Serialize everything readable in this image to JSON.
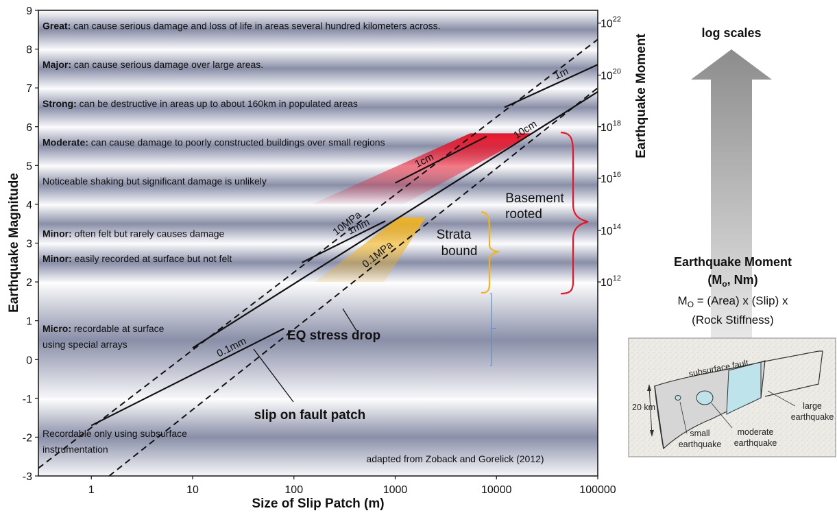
{
  "chart_data": {
    "type": "line",
    "x_scale": "log",
    "xlim": [
      0.3,
      100000
    ],
    "ylim": [
      -3,
      9
    ],
    "xlabel": "Size of Slip Patch (m)",
    "ylabel": "Earthquake Magnitude",
    "y2label": "Earthquake Moment",
    "x_ticks": [
      "1",
      "10",
      "100",
      "1000",
      "10000",
      "100000"
    ],
    "y_ticks": [
      "-3",
      "-2",
      "-1",
      "0",
      "1",
      "2",
      "3",
      "4",
      "5",
      "6",
      "7",
      "8",
      "9"
    ],
    "y2_ticks": [
      {
        "magnitude": 2,
        "base": "10",
        "exp": "12"
      },
      {
        "magnitude": 3.33,
        "base": "10",
        "exp": "14"
      },
      {
        "magnitude": 4.67,
        "base": "10",
        "exp": "16"
      },
      {
        "magnitude": 6,
        "base": "10",
        "exp": "18"
      },
      {
        "magnitude": 7.33,
        "base": "10",
        "exp": "20"
      },
      {
        "magnitude": 8.67,
        "base": "10",
        "exp": "22"
      }
    ],
    "bands": [
      {
        "lo": 8,
        "hi": 9,
        "bold": "Great:",
        "text": " can cause serious damage and loss of life in areas several hundred kilometers across.",
        "label_y": 8.6
      },
      {
        "lo": 7,
        "hi": 8,
        "bold": "Major:",
        "text": " can cause serious damage over large areas.",
        "label_y": 7.6
      },
      {
        "lo": 6,
        "hi": 7,
        "bold": "Strong:",
        "text": " can be destructive in areas up to about 160km in populated areas",
        "label_y": 6.6
      },
      {
        "lo": 5,
        "hi": 6,
        "bold": "Moderate:",
        "text": " can cause damage to poorly constructed buildings over small regions",
        "label_y": 5.6
      },
      {
        "lo": 4,
        "hi": 5,
        "bold": "",
        "text": "Noticeable shaking but significant damage is unlikely",
        "label_y": 4.6
      },
      {
        "lo": 3,
        "hi": 4,
        "bold": "Minor:",
        "text": " often felt but rarely causes damage",
        "label_y": 3.25
      },
      {
        "lo": 2,
        "hi": 3,
        "bold": "Minor:",
        "text": " easily recorded at surface but not felt",
        "label_y": 2.6
      },
      {
        "lo": -1,
        "hi": 2,
        "bold": "Micro:",
        "text": " recordable at surface",
        "text2": "using special arrays",
        "label_y": 0.8
      },
      {
        "lo": -3,
        "hi": -1,
        "bold": "",
        "text": "Recordable only using subsurface",
        "text2": "instrumentation",
        "label_y": -1.9
      }
    ],
    "series": [
      {
        "name": "10MPa",
        "style": "dashed",
        "points": [
          [
            0.3,
            -2.8
          ],
          [
            100000,
            8.25
          ]
        ]
      },
      {
        "name": "0.1MPa",
        "style": "dashed",
        "points": [
          [
            1.5,
            -3
          ],
          [
            100000,
            7.0
          ]
        ]
      },
      {
        "name": "1m",
        "style": "solid",
        "points": [
          [
            12000,
            6.5
          ],
          [
            100000,
            7.6
          ]
        ]
      },
      {
        "name": "10cm",
        "style": "solid",
        "points": [
          [
            10,
            0.3
          ],
          [
            100000,
            6.9
          ]
        ]
      },
      {
        "name": "1cm",
        "style": "solid",
        "points": [
          [
            1000,
            4.55
          ],
          [
            8000,
            5.75
          ]
        ]
      },
      {
        "name": "1mm",
        "style": "solid",
        "points": [
          [
            120,
            2.5
          ],
          [
            800,
            3.57
          ]
        ]
      },
      {
        "name": "0.1mm",
        "style": "solid",
        "points": [
          [
            1,
            -1.7
          ],
          [
            80,
            0.8
          ]
        ]
      }
    ],
    "regions": [
      {
        "name": "Strata bound",
        "color": "#f2b41e",
        "x0": 160,
        "x1": 780,
        "y0": 2.0,
        "y1": 3.67,
        "x_top0": 1100,
        "x_top1": 2000
      },
      {
        "name": "Basement rooted",
        "color": "#e8142a",
        "x0": 150,
        "x1": 1200,
        "y0": 4.0,
        "y1": 5.83,
        "x_top0": 5500,
        "x_top1": 23000
      }
    ],
    "annotations": {
      "basement": [
        "Basement",
        "rooted"
      ],
      "strata": [
        "Strata",
        "bound"
      ],
      "stress_drop": "EQ stress drop",
      "slip": "slip on fault patch",
      "source": "adapted from Zoback and Gorelick (2012)"
    }
  },
  "side_panel": {
    "arrow_label": "log scales",
    "moment_title": "Earthquake Moment",
    "moment_units_prefix": "(M",
    "moment_units_sub": "o",
    "moment_units_suffix": ", Nm)",
    "formula_prefix": "M",
    "formula_sub": "O",
    "formula_line1": " = (Area) x (Slip) x",
    "formula_line2": "(Rock Stiffness)"
  },
  "fault_diagram": {
    "subsurface_fault": "subsurface fault",
    "depth": "20 km",
    "small": [
      "small",
      "earthquake"
    ],
    "moderate": [
      "moderate",
      "earthquake"
    ],
    "large": [
      "large",
      "earthquake"
    ]
  },
  "colors": {
    "band_dark": "#7a7f99",
    "band_light": "#f4f4f8",
    "strata": "#f2b41e",
    "basement": "#e8142a",
    "bracket_blue": "#5b8fc8"
  }
}
